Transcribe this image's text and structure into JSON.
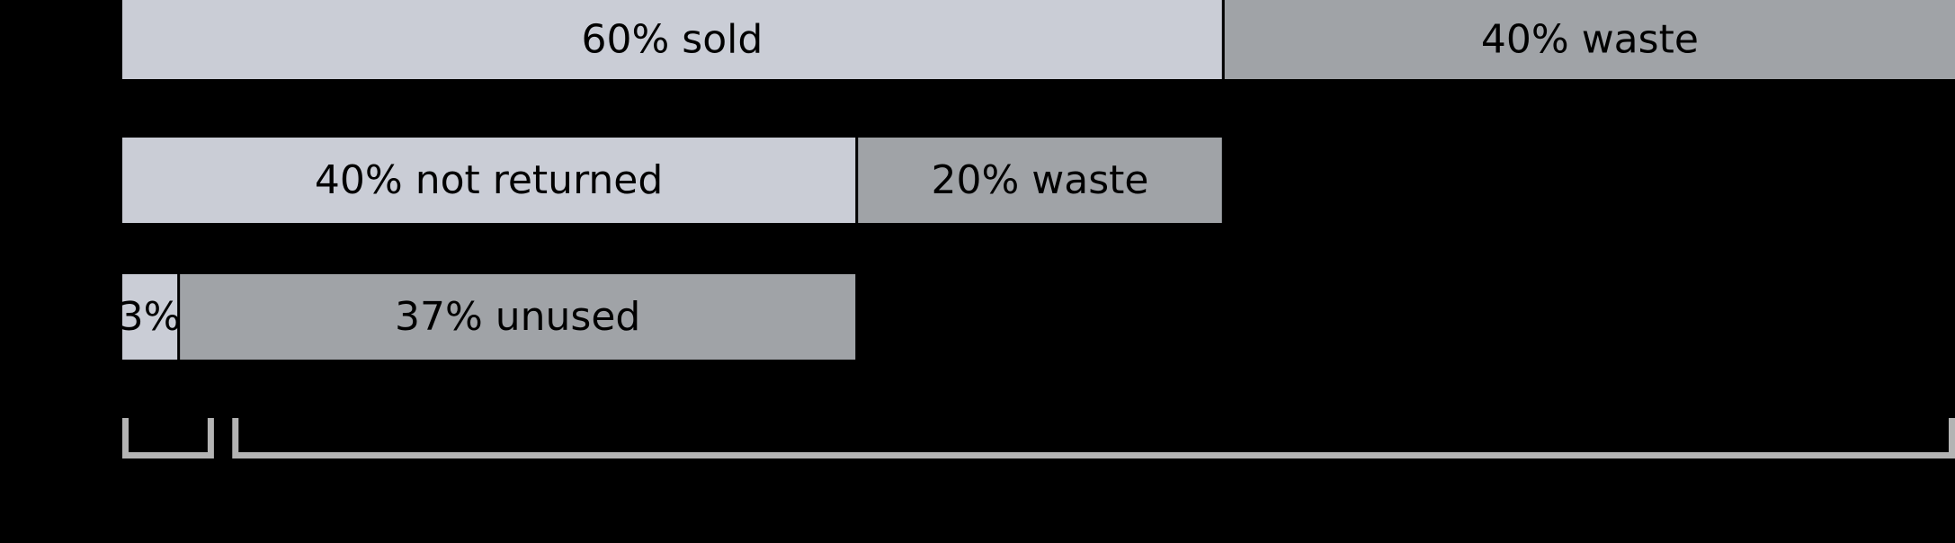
{
  "chart_data": {
    "type": "bar",
    "orientation": "horizontal",
    "stacked": true,
    "title": "",
    "xlabel": "",
    "ylabel": "",
    "xlim": [
      0,
      100
    ],
    "grid": false,
    "legend": "none",
    "rows": [
      {
        "segments": [
          {
            "label": "60% sold",
            "value": 60,
            "kind": "light"
          },
          {
            "label": "40% waste",
            "value": 40,
            "kind": "dark"
          }
        ]
      },
      {
        "segments": [
          {
            "label": "40% not returned",
            "value": 40,
            "kind": "light"
          },
          {
            "label": "20% waste",
            "value": 20,
            "kind": "dark"
          }
        ]
      },
      {
        "segments": [
          {
            "label": "3%",
            "value": 3,
            "kind": "light"
          },
          {
            "label": "37% unused",
            "value": 37,
            "kind": "dark"
          }
        ]
      }
    ],
    "brackets": [
      {
        "from": 0,
        "to": 5
      },
      {
        "from": 6,
        "to": 100
      }
    ],
    "colors": {
      "background": "#000000",
      "light": "#CACDD6",
      "dark": "#A0A3A7",
      "bracket": "#B4B4B4",
      "text": "#000000"
    }
  }
}
